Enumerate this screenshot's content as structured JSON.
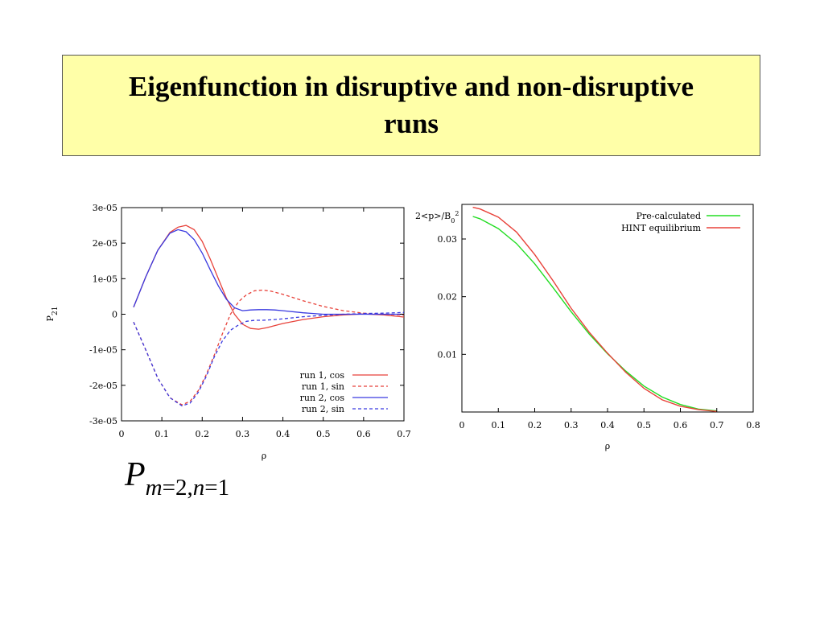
{
  "slide": {
    "title": "Eigenfunction in disruptive and non-disruptive runs",
    "formula": {
      "symbol": "P",
      "m_part": "m",
      "m_val": "=2,",
      "n_part": "n",
      "n_val": "=1"
    }
  },
  "chart_data": [
    {
      "type": "line",
      "xlabel": "ρ",
      "ylabel": "P21",
      "xlim": [
        0,
        0.7
      ],
      "ylim": [
        -3e-05,
        3e-05
      ],
      "xticks": [
        "0",
        "0.1",
        "0.2",
        "0.3",
        "0.4",
        "0.5",
        "0.6",
        "0.7"
      ],
      "yticks": [
        "-3e-05",
        "-2e-05",
        "-1e-05",
        "0",
        "1e-05",
        "2e-05",
        "3e-05"
      ],
      "legend_position": "bottom-right",
      "series": [
        {
          "name": "run 1, cos",
          "color": "#e8423a",
          "dash": "solid",
          "x": [
            0.03,
            0.06,
            0.09,
            0.12,
            0.14,
            0.16,
            0.18,
            0.2,
            0.22,
            0.24,
            0.26,
            0.28,
            0.3,
            0.32,
            0.34,
            0.36,
            0.38,
            0.4,
            0.45,
            0.5,
            0.55,
            0.6,
            0.65,
            0.7
          ],
          "y": [
            2e-06,
            1.05e-05,
            1.8e-05,
            2.3e-05,
            2.45e-05,
            2.5e-05,
            2.38e-05,
            2.05e-05,
            1.55e-05,
            1e-05,
            4.5e-06,
            0.0,
            -2.8e-06,
            -4e-06,
            -4.2e-06,
            -3.8e-06,
            -3.2e-06,
            -2.6e-06,
            -1.5e-06,
            -7e-07,
            -2e-07,
            1e-07,
            -2e-07,
            -8e-07
          ]
        },
        {
          "name": "run 1, sin",
          "color": "#e8423a",
          "dash": "dashed",
          "x": [
            0.03,
            0.06,
            0.09,
            0.12,
            0.15,
            0.17,
            0.19,
            0.21,
            0.23,
            0.25,
            0.27,
            0.29,
            0.31,
            0.33,
            0.35,
            0.37,
            0.4,
            0.45,
            0.5,
            0.55,
            0.6,
            0.65,
            0.7
          ],
          "y": [
            -2.2e-06,
            -1e-05,
            -1.8e-05,
            -2.35e-05,
            -2.55e-05,
            -2.45e-05,
            -2.15e-05,
            -1.7e-05,
            -1.15e-05,
            -5.5e-06,
            0.0,
            3.5e-06,
            5.5e-06,
            6.6e-06,
            6.8e-06,
            6.5e-06,
            5.6e-06,
            3.8e-06,
            2.2e-06,
            1e-06,
            3e-07,
            0.0,
            -2e-07
          ]
        },
        {
          "name": "run 2, cos",
          "color": "#3a3ae0",
          "dash": "solid",
          "x": [
            0.03,
            0.06,
            0.09,
            0.12,
            0.14,
            0.16,
            0.18,
            0.2,
            0.22,
            0.24,
            0.26,
            0.28,
            0.3,
            0.32,
            0.34,
            0.36,
            0.38,
            0.4,
            0.45,
            0.5,
            0.55,
            0.6,
            0.65,
            0.7
          ],
          "y": [
            2e-06,
            1.05e-05,
            1.8e-05,
            2.28e-05,
            2.38e-05,
            2.32e-05,
            2.1e-05,
            1.72e-05,
            1.25e-05,
            8e-06,
            4.2e-06,
            1.8e-06,
            1e-06,
            1.2e-06,
            1.3e-06,
            1.3e-06,
            1.2e-06,
            1e-06,
            4e-07,
            0.0,
            0.0,
            0.0,
            0.0,
            0.0
          ]
        },
        {
          "name": "run 2, sin",
          "color": "#3a3ae0",
          "dash": "dashed",
          "x": [
            0.03,
            0.06,
            0.09,
            0.12,
            0.15,
            0.17,
            0.19,
            0.21,
            0.23,
            0.25,
            0.27,
            0.29,
            0.31,
            0.33,
            0.35,
            0.38,
            0.4,
            0.45,
            0.5,
            0.55,
            0.6,
            0.65,
            0.7
          ],
          "y": [
            -2.2e-06,
            -1e-05,
            -1.8e-05,
            -2.35e-05,
            -2.58e-05,
            -2.5e-05,
            -2.2e-05,
            -1.75e-05,
            -1.2e-05,
            -7.5e-06,
            -4.5e-06,
            -3e-06,
            -2e-06,
            -1.7e-06,
            -1.7e-06,
            -1.5e-06,
            -1.3e-06,
            -7e-07,
            -3e-07,
            0.0,
            2e-07,
            3e-07,
            5e-07
          ]
        }
      ]
    },
    {
      "type": "line",
      "xlabel": "ρ",
      "ylabel": "2<p>/B0²",
      "xlim": [
        0,
        0.8
      ],
      "ylim": [
        0,
        0.036
      ],
      "xticks": [
        "0",
        "0.1",
        "0.2",
        "0.3",
        "0.4",
        "0.5",
        "0.6",
        "0.7",
        "0.8"
      ],
      "yticks": [
        "0.01",
        "0.02",
        "0.03"
      ],
      "legend_position": "top-right",
      "series": [
        {
          "name": "Pre-calculated",
          "color": "#22dd22",
          "dash": "solid",
          "x": [
            0.03,
            0.05,
            0.1,
            0.15,
            0.2,
            0.25,
            0.3,
            0.35,
            0.4,
            0.45,
            0.5,
            0.55,
            0.6,
            0.65,
            0.7
          ],
          "y": [
            0.0339,
            0.0335,
            0.0318,
            0.0292,
            0.0257,
            0.0216,
            0.0174,
            0.0135,
            0.0101,
            0.0071,
            0.0045,
            0.0026,
            0.0013,
            0.0005,
            0.0002
          ]
        },
        {
          "name": "HINT equilibrium",
          "color": "#e8423a",
          "dash": "solid",
          "x": [
            0.03,
            0.05,
            0.1,
            0.15,
            0.2,
            0.25,
            0.3,
            0.35,
            0.4,
            0.45,
            0.5,
            0.55,
            0.6,
            0.65,
            0.7
          ],
          "y": [
            0.0355,
            0.0352,
            0.0338,
            0.0312,
            0.0273,
            0.0228,
            0.018,
            0.0138,
            0.0102,
            0.0069,
            0.0041,
            0.0021,
            0.001,
            0.0004,
            0.0001
          ]
        }
      ]
    }
  ]
}
